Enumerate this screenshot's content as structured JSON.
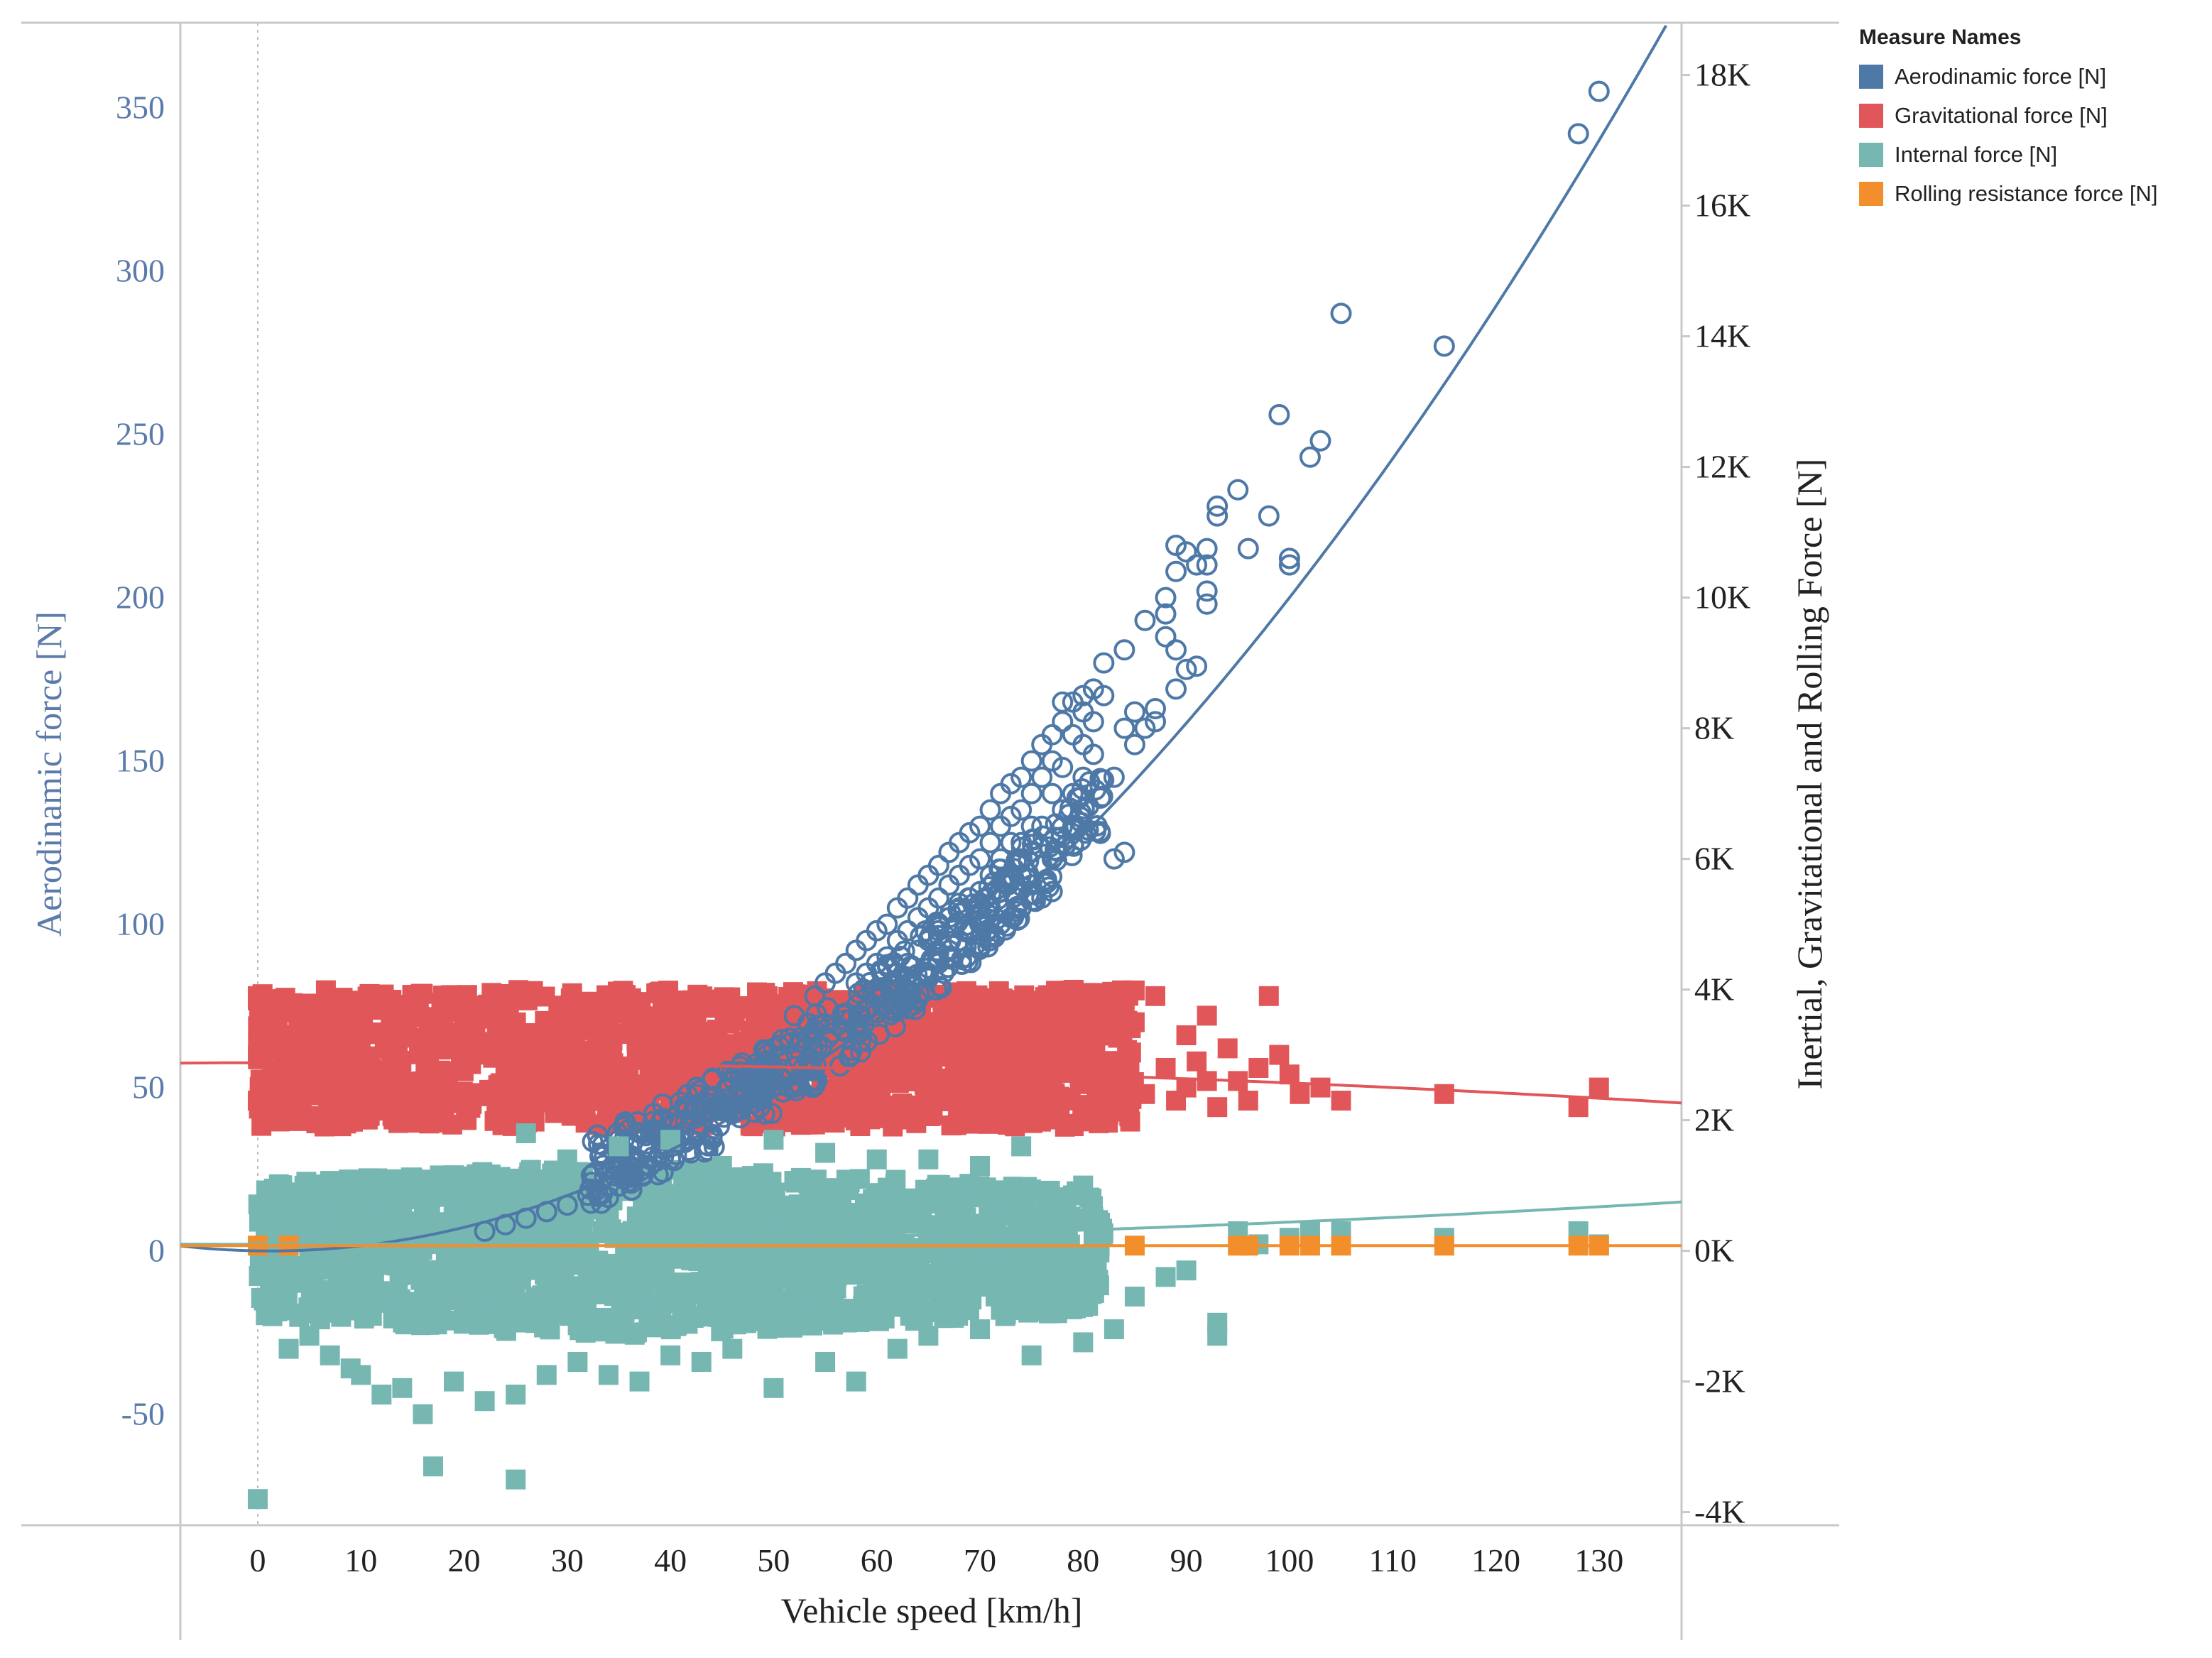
{
  "chart_data": {
    "type": "scatter",
    "xlabel": "Vehicle speed [km/h]",
    "ylabel_left": "Aerodinamic force [N]",
    "ylabel_right": "Inertial, Gravitational and Rolling Force [N]",
    "xlim": [
      -7.5,
      138
    ],
    "ylim_left": [
      -84,
      376
    ],
    "ylim_right": [
      -4200,
      18800
    ],
    "x_ticks": [
      0,
      10,
      20,
      30,
      40,
      50,
      60,
      70,
      80,
      90,
      100,
      110,
      120,
      130
    ],
    "x_tick_labels": [
      "0",
      "10",
      "20",
      "30",
      "40",
      "50",
      "60",
      "70",
      "80",
      "90",
      "100",
      "110",
      "120",
      "130"
    ],
    "y_left_ticks": [
      -50,
      0,
      50,
      100,
      150,
      200,
      250,
      300,
      350
    ],
    "y_left_tick_labels": [
      "-50",
      "0",
      "50",
      "100",
      "150",
      "200",
      "250",
      "300",
      "350"
    ],
    "y_right_ticks": [
      -4000,
      -2000,
      0,
      2000,
      4000,
      6000,
      8000,
      10000,
      12000,
      14000,
      16000,
      18000
    ],
    "y_right_tick_labels": [
      "-4K",
      "-2K",
      "0K",
      "2K",
      "4K",
      "6K",
      "8K",
      "10K",
      "12K",
      "14K",
      "16K",
      "18K"
    ],
    "legend": {
      "title": "Measure Names",
      "position": "top-right",
      "items": [
        {
          "label": "Aerodinamic force [N]",
          "color": "#4e79a7"
        },
        {
          "label": "Gravitational force [N]",
          "color": "#e15759"
        },
        {
          "label": "Internal force [N]",
          "color": "#76b7b2"
        },
        {
          "label": "Rolling resistance force [N]",
          "color": "#f28e2b"
        }
      ]
    },
    "series": [
      {
        "name": "Aerodinamic force [N]",
        "axis": "left",
        "marker": "circle-open",
        "color": "#4e79a7",
        "points": [
          [
            130,
            355
          ],
          [
            128,
            342
          ],
          [
            115,
            277
          ],
          [
            105,
            287
          ],
          [
            103,
            248
          ],
          [
            102,
            243
          ],
          [
            100,
            210
          ],
          [
            100,
            212
          ],
          [
            99,
            256
          ],
          [
            98,
            225
          ],
          [
            96,
            215
          ],
          [
            95,
            233
          ],
          [
            93,
            228
          ],
          [
            93,
            225
          ],
          [
            92,
            215
          ],
          [
            92,
            210
          ],
          [
            92,
            202
          ],
          [
            92,
            198
          ],
          [
            91,
            210
          ],
          [
            91,
            179
          ],
          [
            90,
            214
          ],
          [
            90,
            178
          ],
          [
            89,
            216
          ],
          [
            89,
            208
          ],
          [
            89,
            184
          ],
          [
            89,
            172
          ],
          [
            88,
            200
          ],
          [
            88,
            195
          ],
          [
            88,
            188
          ],
          [
            87,
            166
          ],
          [
            87,
            162
          ],
          [
            86,
            193
          ],
          [
            86,
            160
          ],
          [
            85,
            165
          ],
          [
            85,
            155
          ],
          [
            84,
            184
          ],
          [
            84,
            160
          ],
          [
            84,
            122
          ],
          [
            83,
            145
          ],
          [
            83,
            120
          ],
          [
            82,
            180
          ],
          [
            82,
            170
          ],
          [
            81,
            172
          ],
          [
            81,
            162
          ],
          [
            81,
            152
          ],
          [
            80,
            170
          ],
          [
            80,
            165
          ],
          [
            80,
            155
          ],
          [
            80,
            145
          ],
          [
            79,
            168
          ],
          [
            79,
            158
          ],
          [
            79,
            140
          ],
          [
            79,
            130
          ],
          [
            78,
            168
          ],
          [
            78,
            162
          ],
          [
            78,
            148
          ],
          [
            78,
            135
          ],
          [
            77,
            158
          ],
          [
            77,
            150
          ],
          [
            77,
            140
          ],
          [
            77,
            120
          ],
          [
            77,
            110
          ],
          [
            76,
            155
          ],
          [
            76,
            145
          ],
          [
            76,
            130
          ],
          [
            76,
            118
          ],
          [
            76,
            108
          ],
          [
            75,
            150
          ],
          [
            75,
            140
          ],
          [
            75,
            130
          ],
          [
            75,
            122
          ],
          [
            75,
            112
          ],
          [
            74,
            145
          ],
          [
            74,
            135
          ],
          [
            74,
            125
          ],
          [
            74,
            115
          ],
          [
            74,
            105
          ],
          [
            73,
            143
          ],
          [
            73,
            133
          ],
          [
            73,
            125
          ],
          [
            73,
            115
          ],
          [
            73,
            102
          ],
          [
            72,
            140
          ],
          [
            72,
            130
          ],
          [
            72,
            120
          ],
          [
            72,
            110
          ],
          [
            72,
            100
          ],
          [
            71,
            135
          ],
          [
            71,
            125
          ],
          [
            71,
            115
          ],
          [
            71,
            105
          ],
          [
            71,
            95
          ],
          [
            70,
            130
          ],
          [
            70,
            120
          ],
          [
            70,
            110
          ],
          [
            70,
            100
          ],
          [
            70,
            93
          ],
          [
            69,
            128
          ],
          [
            69,
            118
          ],
          [
            69,
            108
          ],
          [
            69,
            98
          ],
          [
            68,
            125
          ],
          [
            68,
            115
          ],
          [
            68,
            105
          ],
          [
            68,
            95
          ],
          [
            67,
            122
          ],
          [
            67,
            112
          ],
          [
            67,
            102
          ],
          [
            67,
            92
          ],
          [
            66,
            118
          ],
          [
            66,
            108
          ],
          [
            66,
            98
          ],
          [
            66,
            88
          ],
          [
            65,
            115
          ],
          [
            65,
            105
          ],
          [
            65,
            95
          ],
          [
            65,
            85
          ],
          [
            64,
            112
          ],
          [
            64,
            102
          ],
          [
            64,
            92
          ],
          [
            63,
            108
          ],
          [
            63,
            98
          ],
          [
            63,
            88
          ],
          [
            62,
            105
          ],
          [
            62,
            95
          ],
          [
            62,
            85
          ],
          [
            61,
            100
          ],
          [
            61,
            90
          ],
          [
            60,
            98
          ],
          [
            60,
            88
          ],
          [
            59,
            95
          ],
          [
            59,
            85
          ],
          [
            58,
            92
          ],
          [
            58,
            82
          ],
          [
            57,
            88
          ],
          [
            56,
            85
          ],
          [
            55,
            82
          ],
          [
            54,
            78
          ],
          [
            52,
            72
          ],
          [
            50,
            62
          ],
          [
            48,
            50
          ],
          [
            46,
            42
          ],
          [
            44,
            35
          ],
          [
            42,
            30
          ],
          [
            40,
            28
          ],
          [
            38,
            26
          ],
          [
            36,
            24
          ],
          [
            34,
            20
          ],
          [
            32,
            17
          ],
          [
            30,
            14
          ],
          [
            28,
            12
          ],
          [
            26,
            10
          ],
          [
            24,
            8
          ],
          [
            22,
            6
          ]
        ]
      },
      {
        "name": "Gravitational force [N]",
        "axis": "right",
        "marker": "square",
        "color": "#e15759",
        "band": {
          "x": [
            0,
            85
          ],
          "y": [
            1900,
            4000
          ]
        },
        "points": [
          [
            0,
            3900
          ],
          [
            0,
            2300
          ],
          [
            1,
            3100
          ],
          [
            85,
            3500
          ],
          [
            86,
            2400
          ],
          [
            87,
            3900
          ],
          [
            88,
            2800
          ],
          [
            89,
            2300
          ],
          [
            90,
            3300
          ],
          [
            90,
            2500
          ],
          [
            91,
            2900
          ],
          [
            92,
            2600
          ],
          [
            92,
            3600
          ],
          [
            93,
            2200
          ],
          [
            94,
            3100
          ],
          [
            95,
            2600
          ],
          [
            96,
            2300
          ],
          [
            97,
            2800
          ],
          [
            98,
            3900
          ],
          [
            99,
            3000
          ],
          [
            100,
            2700
          ],
          [
            101,
            2400
          ],
          [
            103,
            2500
          ],
          [
            105,
            2300
          ],
          [
            115,
            2400
          ],
          [
            128,
            2200
          ],
          [
            130,
            2500
          ]
        ]
      },
      {
        "name": "Internal force [N]",
        "axis": "right",
        "marker": "square",
        "color": "#76b7b2",
        "band": {
          "x": [
            0,
            82
          ],
          "y": [
            -1200,
            1200
          ]
        },
        "points": [
          [
            0,
            -3800
          ],
          [
            1,
            -300
          ],
          [
            3,
            -1500
          ],
          [
            5,
            -1300
          ],
          [
            7,
            -1600
          ],
          [
            9,
            -1800
          ],
          [
            10,
            -1900
          ],
          [
            12,
            -2200
          ],
          [
            14,
            -2100
          ],
          [
            16,
            -2500
          ],
          [
            17,
            -3300
          ],
          [
            19,
            -2000
          ],
          [
            22,
            -2300
          ],
          [
            25,
            -3500
          ],
          [
            25,
            -2200
          ],
          [
            28,
            -1900
          ],
          [
            31,
            -1700
          ],
          [
            34,
            -1900
          ],
          [
            37,
            -2000
          ],
          [
            40,
            -1600
          ],
          [
            43,
            -1700
          ],
          [
            46,
            -1500
          ],
          [
            50,
            -2100
          ],
          [
            55,
            -1700
          ],
          [
            58,
            -2000
          ],
          [
            62,
            -1500
          ],
          [
            65,
            -1300
          ],
          [
            70,
            -1200
          ],
          [
            75,
            -1600
          ],
          [
            80,
            -1400
          ],
          [
            83,
            -1200
          ],
          [
            85,
            -700
          ],
          [
            88,
            -400
          ],
          [
            90,
            -300
          ],
          [
            93,
            -1300
          ],
          [
            93,
            -1100
          ],
          [
            95,
            300
          ],
          [
            97,
            100
          ],
          [
            100,
            200
          ],
          [
            102,
            300
          ],
          [
            105,
            300
          ],
          [
            115,
            200
          ],
          [
            128,
            300
          ],
          [
            130,
            100
          ],
          [
            26,
            1800
          ],
          [
            30,
            1400
          ],
          [
            35,
            1600
          ],
          [
            40,
            1700
          ],
          [
            45,
            1300
          ],
          [
            50,
            1700
          ],
          [
            55,
            1500
          ],
          [
            60,
            1400
          ],
          [
            65,
            1400
          ],
          [
            70,
            1300
          ],
          [
            74,
            1600
          ],
          [
            80,
            1000
          ]
        ]
      },
      {
        "name": "Rolling resistance force [N]",
        "axis": "right",
        "marker": "square",
        "color": "#f28e2b",
        "points": [
          [
            0,
            80
          ],
          [
            3,
            80
          ],
          [
            85,
            80
          ],
          [
            95,
            80
          ],
          [
            96,
            80
          ],
          [
            100,
            80
          ],
          [
            102,
            80
          ],
          [
            105,
            80
          ],
          [
            115,
            80
          ],
          [
            128,
            80
          ],
          [
            130,
            80
          ]
        ]
      }
    ],
    "trend_lines": [
      {
        "series": "Aerodinamic force [N]",
        "axis": "left",
        "color": "#4e79a7",
        "type": "polynomial",
        "coef": [
          0.0,
          -0.05,
          0.0205
        ]
      },
      {
        "series": "Gravitational force [N]",
        "axis": "right",
        "color": "#e15759",
        "type": "polynomial",
        "coef": [
          2880,
          0.5,
          -0.036
        ]
      },
      {
        "series": "Internal force [N]",
        "axis": "right",
        "color": "#76b7b2",
        "type": "polynomial",
        "coef": [
          100,
          0.0,
          0.034
        ]
      },
      {
        "series": "Rolling resistance force [N]",
        "axis": "right",
        "color": "#f28e2b",
        "type": "linear",
        "coef": [
          80,
          0.0,
          0.0
        ]
      }
    ]
  }
}
